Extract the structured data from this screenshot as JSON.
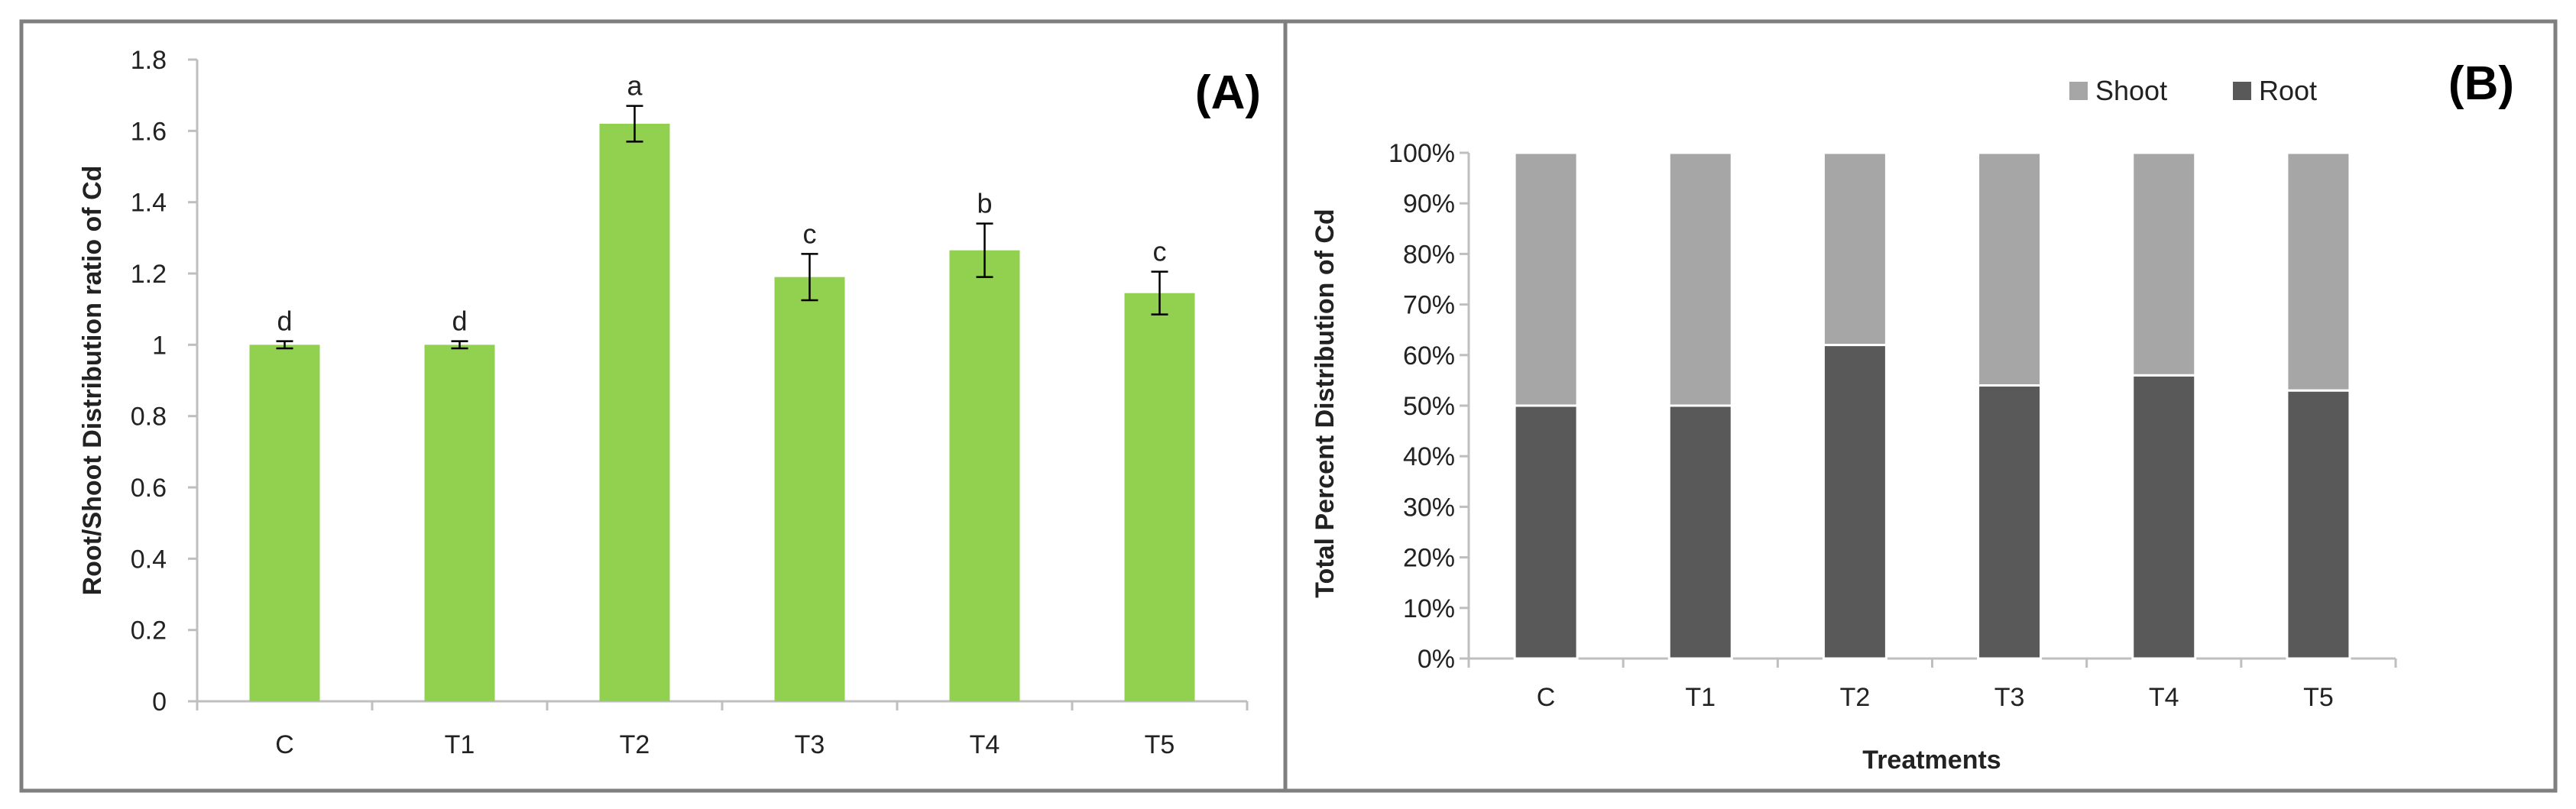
{
  "colors": {
    "bar_green": "#92D050",
    "root": "#595959",
    "shoot": "#A6A6A6",
    "axis": "#BFBFBF",
    "text": "#222222",
    "panel_border": "#7F7F7F"
  },
  "chart_data": [
    {
      "id": "A",
      "type": "bar",
      "panel_label": "(A)",
      "title": "",
      "xlabel": "",
      "ylabel": "Root/Shoot Distribution ratio of Cd",
      "categories": [
        "C",
        "T1",
        "T2",
        "T3",
        "T4",
        "T5"
      ],
      "values": [
        1.0,
        1.0,
        1.62,
        1.19,
        1.265,
        1.145
      ],
      "errors": [
        0.01,
        0.01,
        0.05,
        0.065,
        0.075,
        0.06
      ],
      "significance_letters": [
        "d",
        "d",
        "a",
        "c",
        "b",
        "c"
      ],
      "ylim": [
        0,
        1.8
      ],
      "ytick_values": [
        0,
        0.2,
        0.4,
        0.6,
        0.8,
        1.0,
        1.2,
        1.4,
        1.6,
        1.8
      ],
      "ytick_labels": [
        "0",
        "0.2",
        "0.4",
        "0.6",
        "0.8",
        "1",
        "1.2",
        "1.4",
        "1.6",
        "1.8"
      ],
      "grid": false
    },
    {
      "id": "B",
      "type": "bar",
      "stacked": true,
      "panel_label": "(B)",
      "title": "",
      "xlabel": "Treatments",
      "ylabel": "Total Percent Distribution of Cd",
      "categories": [
        "C",
        "T1",
        "T2",
        "T3",
        "T4",
        "T5"
      ],
      "series": [
        {
          "name": "Root",
          "values": [
            50,
            50,
            62,
            54,
            56,
            53
          ]
        },
        {
          "name": "Shoot",
          "values": [
            50,
            50,
            38,
            46,
            44,
            47
          ]
        }
      ],
      "legend_order": [
        "Shoot",
        "Root"
      ],
      "legend_position": "top-right",
      "ylim": [
        0,
        100
      ],
      "ytick_values": [
        0,
        10,
        20,
        30,
        40,
        50,
        60,
        70,
        80,
        90,
        100
      ],
      "ytick_labels": [
        "0%",
        "10%",
        "20%",
        "30%",
        "40%",
        "50%",
        "60%",
        "70%",
        "80%",
        "90%",
        "100%"
      ],
      "grid": false
    }
  ]
}
